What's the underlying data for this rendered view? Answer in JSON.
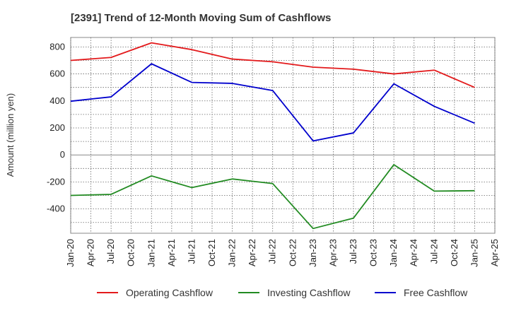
{
  "chart_data": {
    "type": "line",
    "title": "[2391]  Trend of 12-Month Moving Sum of Cashflows",
    "xlabel": "",
    "ylabel": "Amount (million yen)",
    "x_ticks": [
      "Jan-20",
      "Apr-20",
      "Jul-20",
      "Oct-20",
      "Jan-21",
      "Apr-21",
      "Jul-21",
      "Oct-21",
      "Jan-22",
      "Apr-22",
      "Jul-22",
      "Oct-22",
      "Jan-23",
      "Apr-23",
      "Jul-23",
      "Oct-23",
      "Jan-24",
      "Apr-24",
      "Jul-24",
      "Oct-24",
      "Jan-25",
      "Apr-25"
    ],
    "y_ticks": [
      -400,
      -200,
      0,
      200,
      400,
      600,
      800
    ],
    "ylim": [
      -580,
      870
    ],
    "grid": true,
    "legend_position": "bottom",
    "categories": [
      "Jan-20",
      "Jul-20",
      "Jan-21",
      "Jul-21",
      "Jan-22",
      "Jul-22",
      "Jan-23",
      "Jul-23",
      "Jan-24",
      "Jul-24",
      "Jan-25"
    ],
    "series": [
      {
        "name": "Operating Cashflow",
        "color": "#e31a1c",
        "values": [
          700,
          722,
          830,
          780,
          710,
          690,
          650,
          635,
          600,
          628,
          500
        ]
      },
      {
        "name": "Investing Cashflow",
        "color": "#228b22",
        "values": [
          -300,
          -292,
          -155,
          -242,
          -178,
          -212,
          -545,
          -468,
          -72,
          -268,
          -265
        ]
      },
      {
        "name": "Free Cashflow",
        "color": "#0000cd",
        "values": [
          398,
          430,
          675,
          537,
          530,
          477,
          104,
          163,
          527,
          360,
          235
        ]
      }
    ]
  }
}
